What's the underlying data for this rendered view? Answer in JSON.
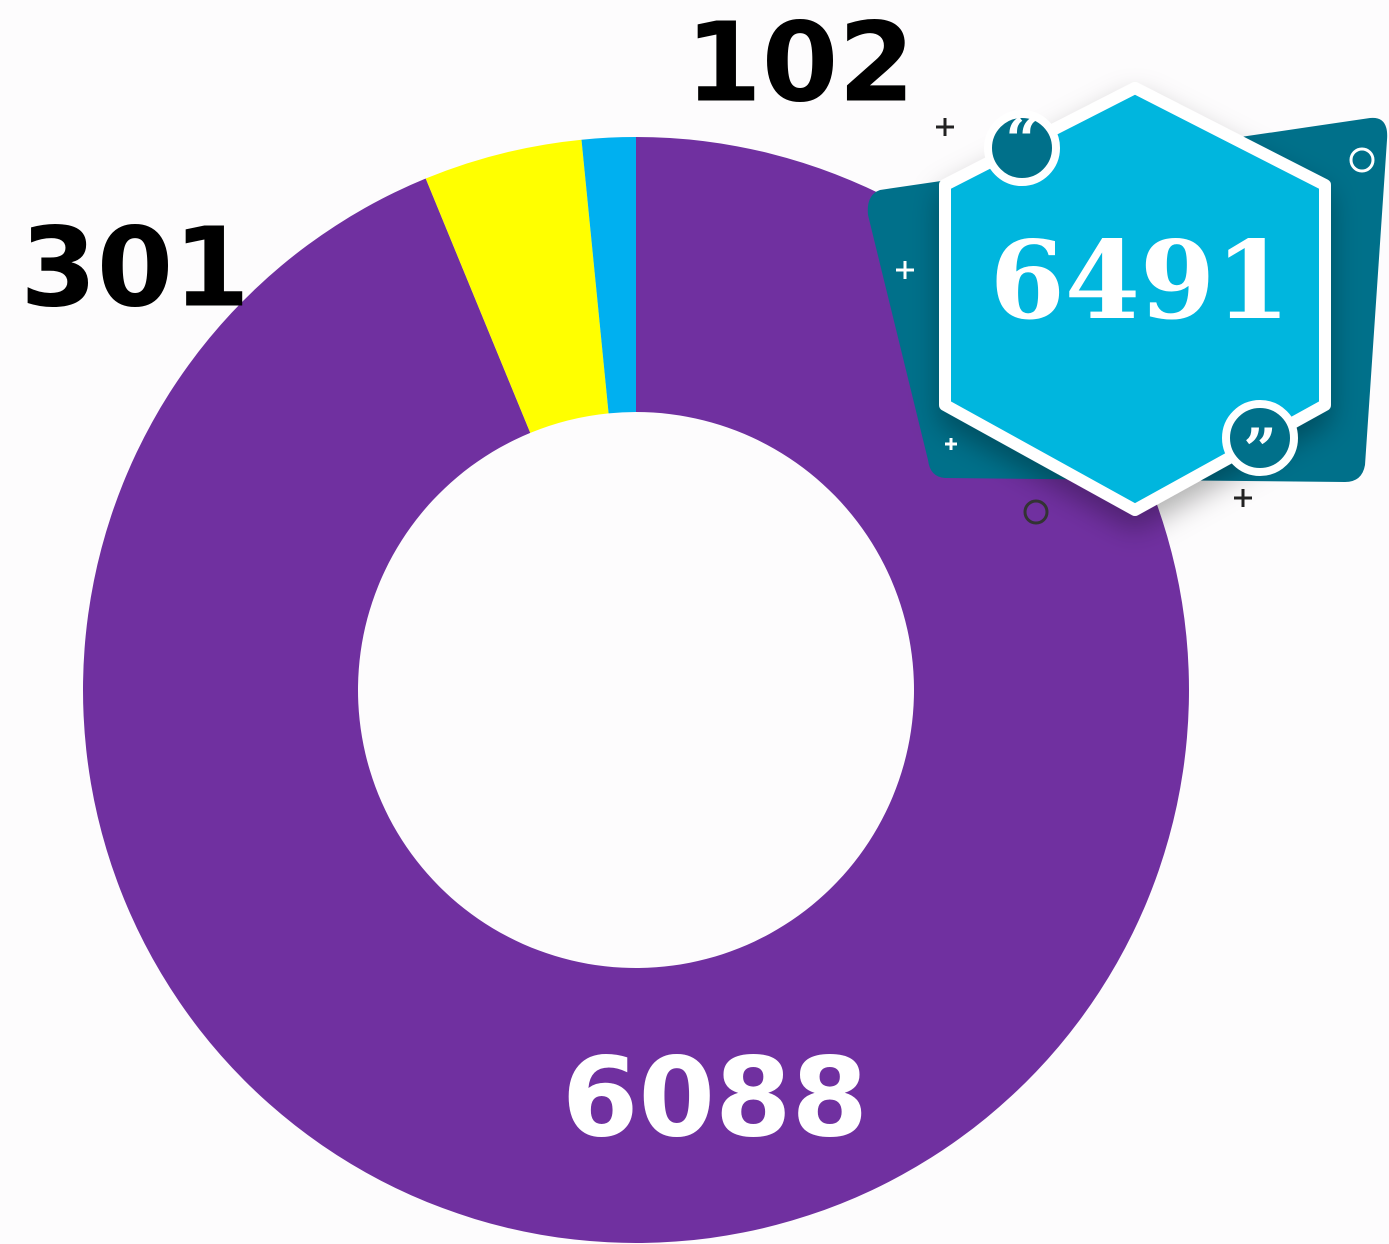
{
  "chart_data": {
    "type": "donut",
    "values": [
      6088,
      301,
      102
    ],
    "colors": [
      "#7030a0",
      "#ffff00",
      "#00b0f0"
    ],
    "total": 6491
  }
}
